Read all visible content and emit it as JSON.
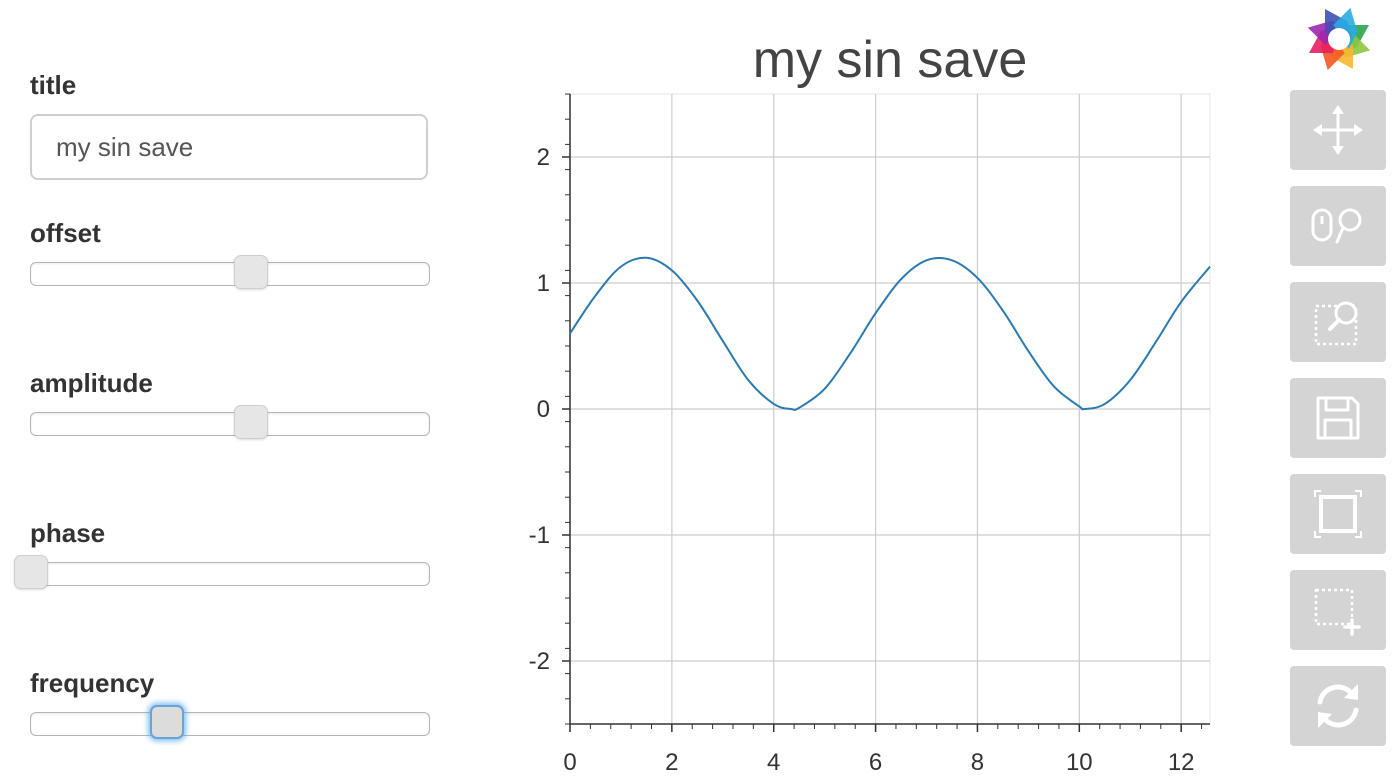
{
  "controls": {
    "title_label": "title",
    "title_value": "my sin save",
    "offset_label": "offset",
    "offset_value": 0.55,
    "amplitude_label": "amplitude",
    "amplitude_value": 0.55,
    "phase_label": "phase",
    "phase_value": 0.0,
    "frequency_label": "frequency",
    "frequency_value": 0.34
  },
  "toolbar": {
    "icons": [
      "bokeh-logo-icon",
      "pan-icon",
      "wheel-zoom-icon",
      "box-zoom-icon",
      "save-icon",
      "reset-icon",
      "box-select-icon",
      "refresh-icon"
    ]
  },
  "colors": {
    "line": "#2a7ab0",
    "tool_bg": "#d4d4d4",
    "tool_icon": "#ffffff",
    "grid": "#cccccc"
  },
  "chart_data": {
    "type": "line",
    "title": "my sin save",
    "xlabel": "",
    "ylabel": "",
    "xlim": [
      0,
      12.566
    ],
    "ylim": [
      -2.5,
      2.5
    ],
    "x_ticks": [
      "0",
      "2",
      "4",
      "6",
      "8",
      "10",
      "12"
    ],
    "y_ticks": [
      "2",
      "1",
      "0",
      "-1",
      "-2"
    ],
    "grid": true,
    "legend": "none",
    "series": [
      {
        "x": [
          0,
          0.5,
          1.0,
          1.5,
          2.0,
          2.5,
          3.0,
          3.5,
          4.0,
          4.34,
          4.5,
          5.0,
          5.5,
          6.0,
          6.5,
          7.0,
          7.5,
          8.0,
          8.5,
          9.0,
          9.5,
          10.0,
          10.1,
          10.5,
          11.0,
          11.5,
          12.0,
          12.566
        ],
        "y": [
          0.6,
          0.9,
          1.13,
          1.2,
          1.1,
          0.86,
          0.54,
          0.23,
          0.04,
          0.0,
          0.01,
          0.16,
          0.44,
          0.76,
          1.03,
          1.18,
          1.18,
          1.04,
          0.78,
          0.46,
          0.18,
          0.02,
          0.0,
          0.04,
          0.23,
          0.53,
          0.85,
          1.13
        ]
      }
    ]
  }
}
